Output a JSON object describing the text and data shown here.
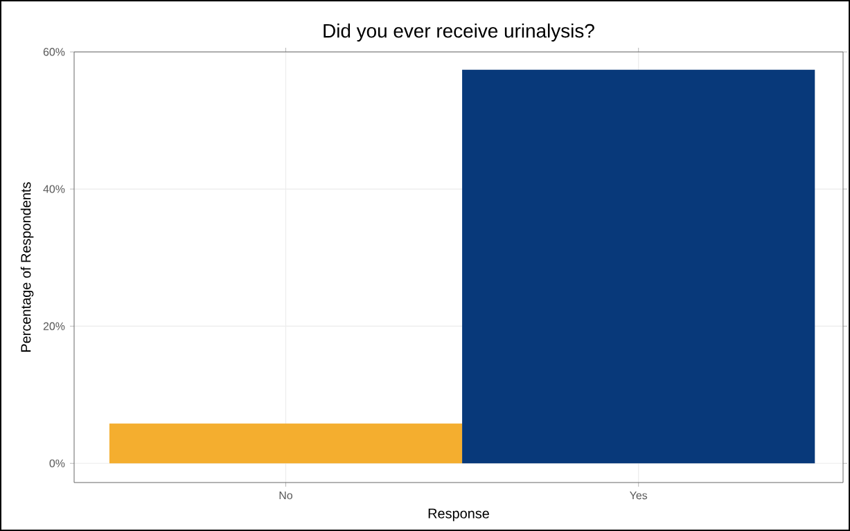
{
  "chart_data": {
    "type": "bar",
    "title": "Did you ever receive urinalysis?",
    "xlabel": "Response",
    "ylabel": "Percentage of Respondents",
    "categories": [
      "No",
      "Yes"
    ],
    "values": [
      5.8,
      57.4
    ],
    "colors": [
      "#f4ae2f",
      "#08397a"
    ],
    "ylim": [
      -2.8,
      60
    ],
    "yticks": [
      {
        "value": 0,
        "label": "0%"
      },
      {
        "value": 20,
        "label": "20%"
      },
      {
        "value": 40,
        "label": "40%"
      },
      {
        "value": 60,
        "label": "60%"
      }
    ],
    "grid": true
  }
}
